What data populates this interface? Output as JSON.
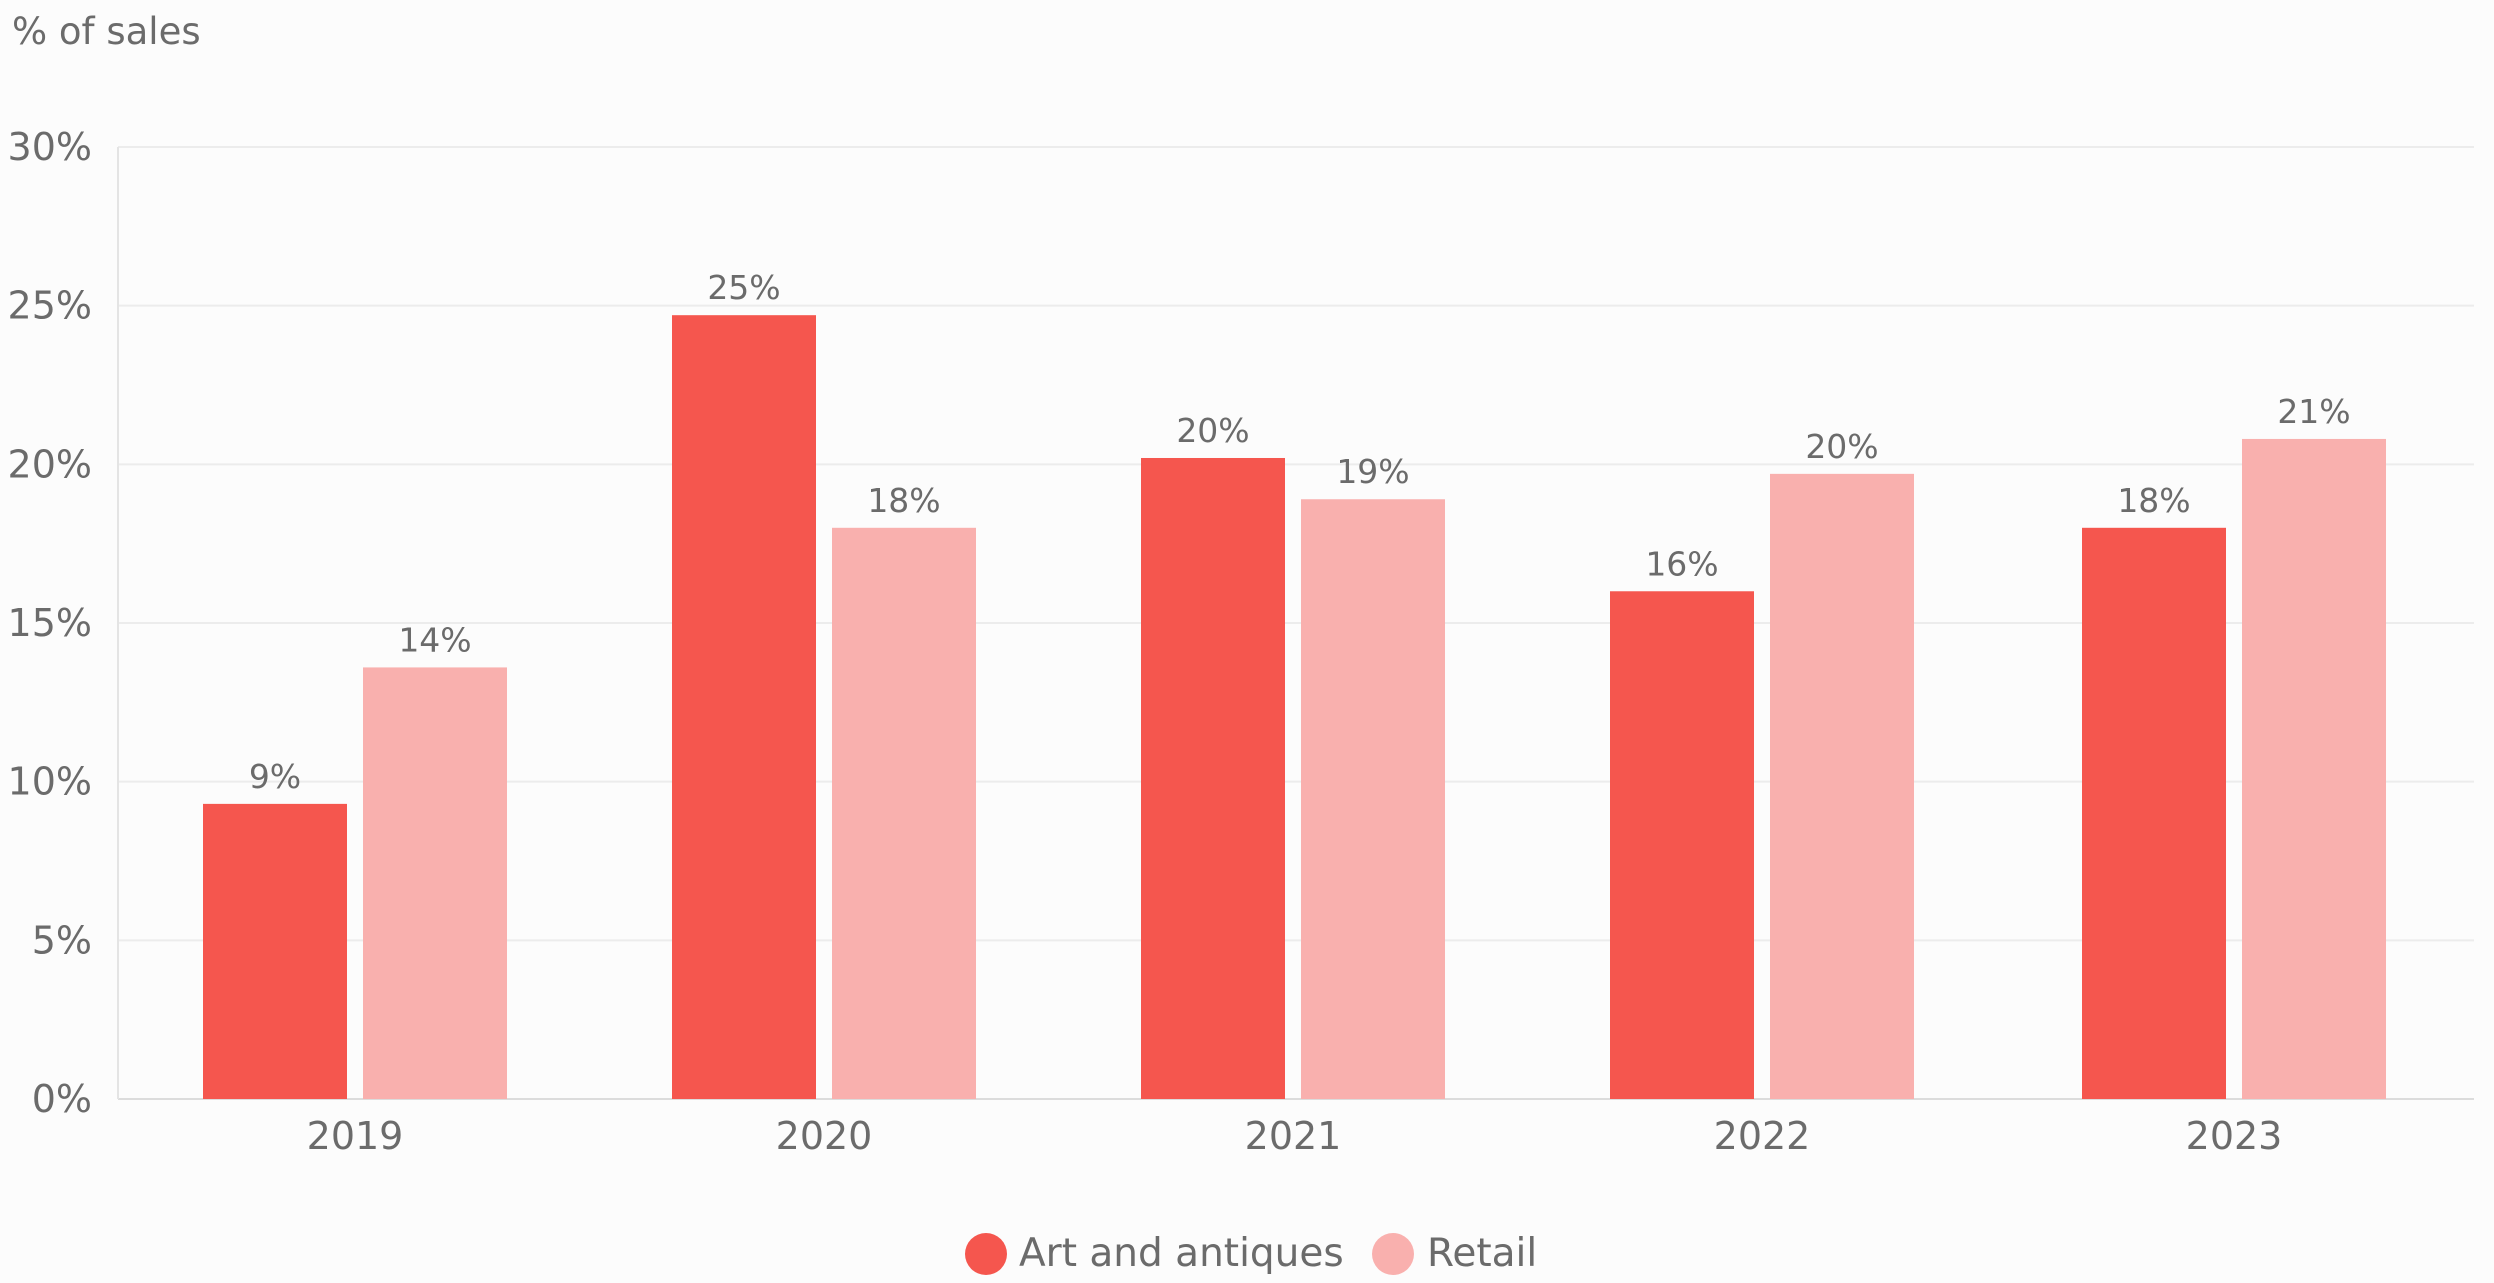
{
  "chart_data": {
    "type": "bar",
    "ylabel": "% of sales",
    "categories": [
      "2019",
      "2020",
      "2021",
      "2022",
      "2023"
    ],
    "ylim": [
      0,
      30
    ],
    "yticks": [
      0,
      5,
      10,
      15,
      20,
      25,
      30
    ],
    "ytick_labels": [
      "0%",
      "5%",
      "10%",
      "15%",
      "20%",
      "25%",
      "30%"
    ],
    "grid": true,
    "legend_position": "bottom-center",
    "series": [
      {
        "name": "Art and antiques",
        "color": "#f5564e",
        "values": [
          9.3,
          24.7,
          20.2,
          16.0,
          18.0
        ],
        "labels": [
          "9%",
          "25%",
          "20%",
          "16%",
          "18%"
        ]
      },
      {
        "name": "Retail",
        "color": "#f9b0ae",
        "values": [
          13.6,
          18.0,
          18.9,
          19.7,
          20.8
        ],
        "labels": [
          "14%",
          "18%",
          "19%",
          "20%",
          "21%"
        ]
      }
    ]
  }
}
